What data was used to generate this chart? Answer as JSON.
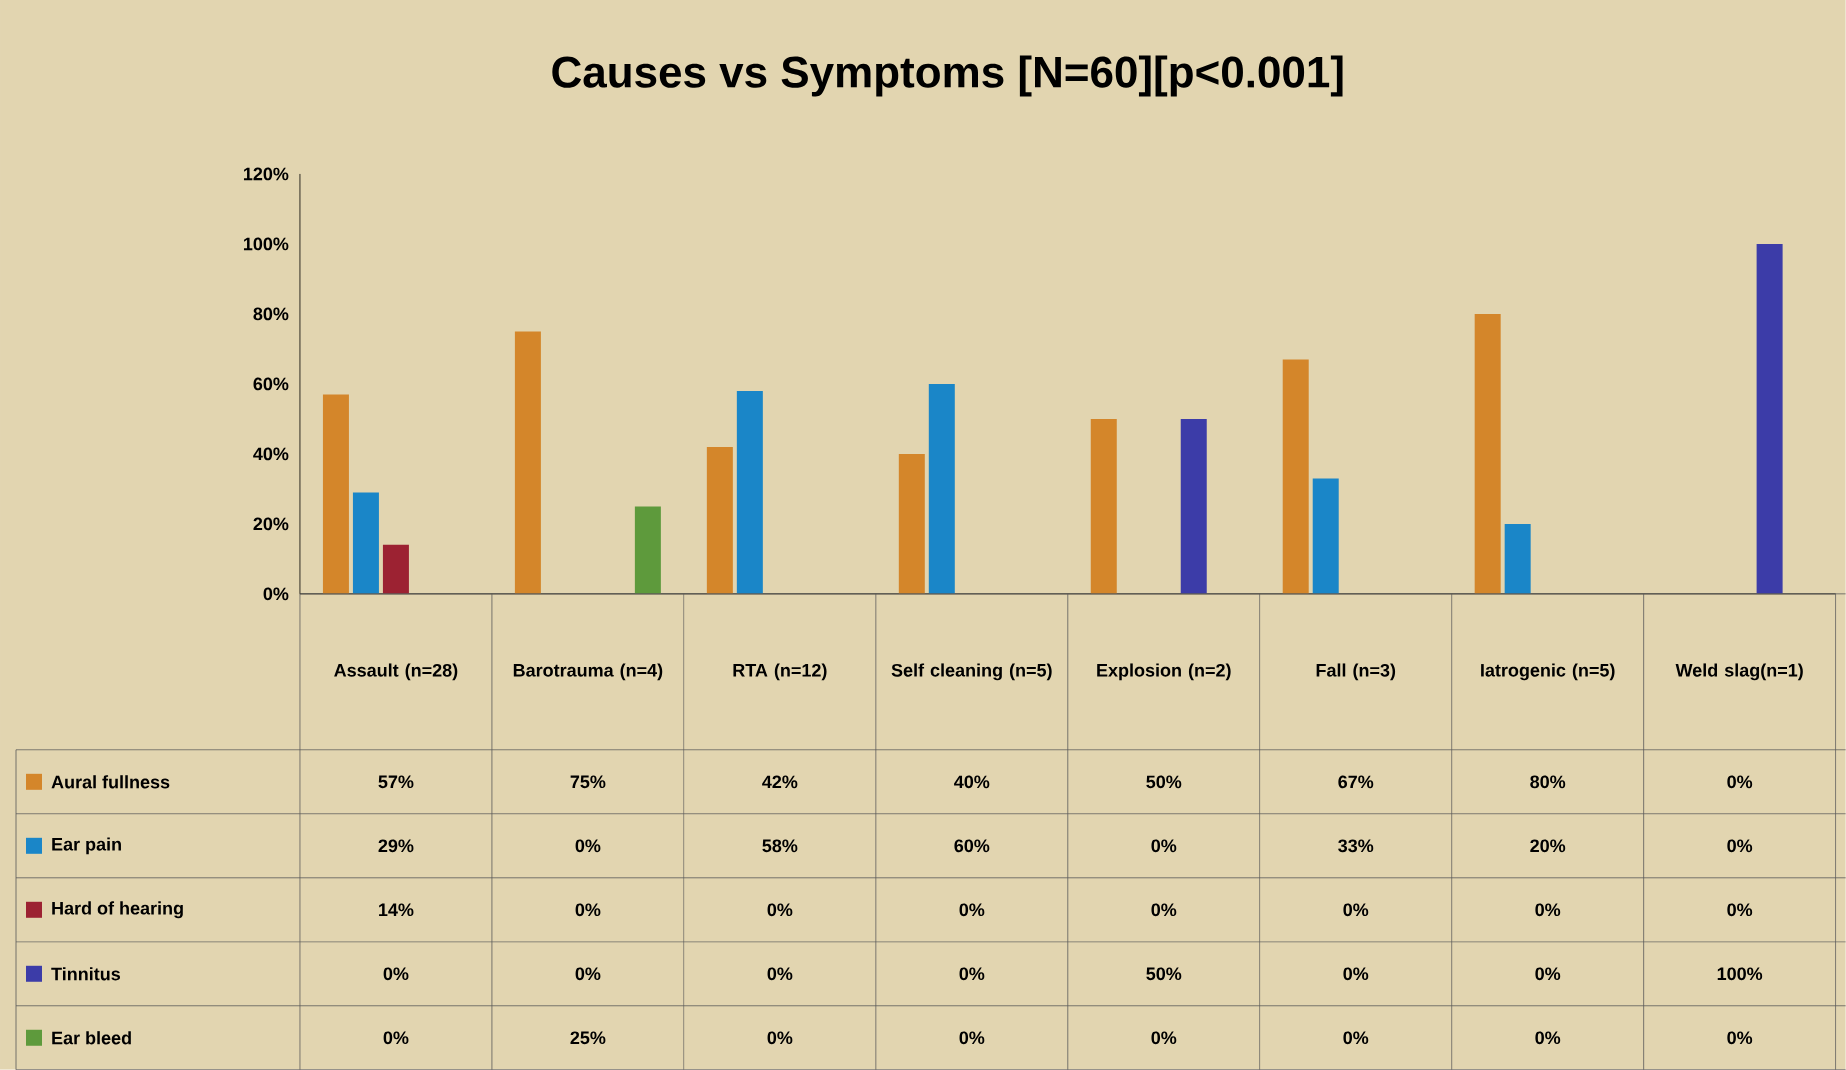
{
  "chart_data": {
    "type": "bar",
    "title": "Causes vs Symptoms [N=60][p<0.001]",
    "categories": [
      "Assault (n=28)",
      "Barotrauma (n=4)",
      "RTA (n=12)",
      "Self cleaning (n=5)",
      "Explosion (n=2)",
      "Fall (n=3)",
      "Iatrogenic (n=5)",
      "Weld slag(n=1)"
    ],
    "series": [
      {
        "name": "Aural fullness",
        "color": "#d4862a",
        "values": [
          57,
          75,
          42,
          40,
          50,
          67,
          80,
          0
        ],
        "value_labels": [
          "57%",
          "75%",
          "42%",
          "40%",
          "50%",
          "67%",
          "80%",
          "0%"
        ]
      },
      {
        "name": "Ear pain",
        "color": "#1a86c8",
        "values": [
          29,
          0,
          58,
          60,
          0,
          33,
          20,
          0
        ],
        "value_labels": [
          "29%",
          "0%",
          "58%",
          "60%",
          "0%",
          "33%",
          "20%",
          "0%"
        ]
      },
      {
        "name": "Hard of hearing",
        "color": "#9c2232",
        "values": [
          14,
          0,
          0,
          0,
          0,
          0,
          0,
          0
        ],
        "value_labels": [
          "14%",
          "0%",
          "0%",
          "0%",
          "0%",
          "0%",
          "0%",
          "0%"
        ]
      },
      {
        "name": "Tinnitus",
        "color": "#3c3ca8",
        "values": [
          0,
          0,
          0,
          0,
          50,
          0,
          0,
          100
        ],
        "value_labels": [
          "0%",
          "0%",
          "0%",
          "0%",
          "50%",
          "0%",
          "0%",
          "100%"
        ]
      },
      {
        "name": "Ear bleed",
        "color": "#5e9a3c",
        "values": [
          0,
          25,
          0,
          0,
          0,
          0,
          0,
          0
        ],
        "value_labels": [
          "0%",
          "25%",
          "0%",
          "0%",
          "0%",
          "0%",
          "0%",
          "0%"
        ]
      }
    ],
    "ylim": [
      0,
      120
    ],
    "yticks": [
      {
        "value": 0,
        "label": "0%"
      },
      {
        "value": 20,
        "label": "20%"
      },
      {
        "value": 40,
        "label": "40%"
      },
      {
        "value": 60,
        "label": "60%"
      },
      {
        "value": 80,
        "label": "80%"
      },
      {
        "value": 100,
        "label": "100%"
      },
      {
        "value": 120,
        "label": "120%"
      }
    ],
    "legend": "bottom",
    "grid": false
  }
}
